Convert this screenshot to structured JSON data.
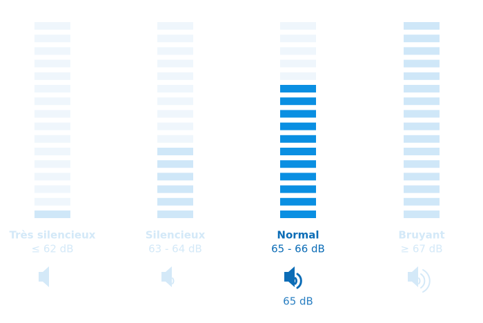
{
  "levels": [
    {
      "label": "Très silencieux",
      "range": "≤ 62 dB",
      "filled_bars": 1,
      "total_bars": 16,
      "active": false
    },
    {
      "label": "Silencieux",
      "range": "63 - 64 dB",
      "filled_bars": 6,
      "total_bars": 16,
      "active": false
    },
    {
      "label": "Normal",
      "range": "65 - 66 dB",
      "filled_bars": 11,
      "total_bars": 16,
      "active": true
    },
    {
      "label": "Bruyant",
      "range": "≥ 67 dB",
      "filled_bars": 16,
      "total_bars": 16,
      "active": false
    }
  ],
  "current": "65 dB"
}
